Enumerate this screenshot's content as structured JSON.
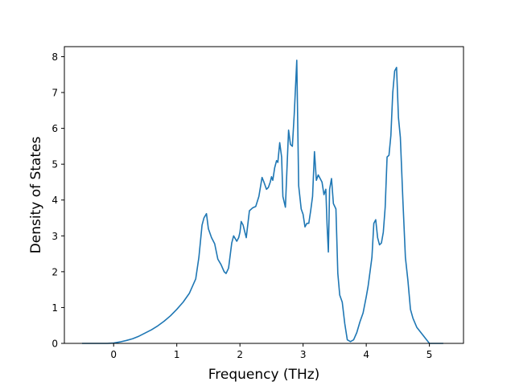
{
  "chart_data": {
    "type": "line",
    "title": "",
    "xlabel": "Frequency (THz)",
    "ylabel": "Density of States",
    "xlim": [
      -0.78,
      5.54
    ],
    "ylim": [
      0,
      8.28
    ],
    "xticks": [
      0,
      1,
      2,
      3,
      4,
      5
    ],
    "yticks": [
      0,
      1,
      2,
      3,
      4,
      5,
      6,
      7,
      8
    ],
    "grid": false,
    "legend": "none",
    "series": [
      {
        "color": "#1f77b4",
        "x": [
          -0.5,
          -0.3,
          -0.1,
          0.0,
          0.1,
          0.2,
          0.3,
          0.4,
          0.5,
          0.6,
          0.7,
          0.8,
          0.9,
          1.0,
          1.1,
          1.2,
          1.3,
          1.35,
          1.4,
          1.43,
          1.47,
          1.5,
          1.55,
          1.6,
          1.65,
          1.7,
          1.75,
          1.78,
          1.82,
          1.87,
          1.9,
          1.95,
          1.98,
          2.0,
          2.02,
          2.05,
          2.1,
          2.15,
          2.2,
          2.25,
          2.3,
          2.35,
          2.38,
          2.42,
          2.45,
          2.48,
          2.5,
          2.52,
          2.55,
          2.58,
          2.6,
          2.63,
          2.66,
          2.68,
          2.72,
          2.75,
          2.77,
          2.8,
          2.83,
          2.86,
          2.9,
          2.93,
          2.97,
          3.0,
          3.03,
          3.06,
          3.09,
          3.12,
          3.15,
          3.18,
          3.21,
          3.24,
          3.27,
          3.3,
          3.33,
          3.36,
          3.38,
          3.4,
          3.42,
          3.45,
          3.48,
          3.52,
          3.55,
          3.58,
          3.62,
          3.66,
          3.7,
          3.75,
          3.8,
          3.85,
          3.9,
          3.95,
          4.0,
          4.03,
          4.06,
          4.09,
          4.12,
          4.15,
          4.18,
          4.21,
          4.24,
          4.27,
          4.3,
          4.33,
          4.36,
          4.39,
          4.42,
          4.45,
          4.48,
          4.51,
          4.54,
          4.58,
          4.62,
          4.66,
          4.7,
          4.74,
          4.8,
          5.0,
          5.22
        ],
        "y": [
          0.0,
          0.0,
          0.0,
          0.01,
          0.04,
          0.08,
          0.13,
          0.2,
          0.29,
          0.38,
          0.49,
          0.62,
          0.77,
          0.95,
          1.15,
          1.4,
          1.8,
          2.4,
          3.3,
          3.5,
          3.62,
          3.2,
          2.95,
          2.78,
          2.35,
          2.2,
          2.0,
          1.95,
          2.1,
          2.8,
          3.0,
          2.85,
          2.95,
          3.1,
          3.4,
          3.3,
          2.95,
          3.7,
          3.78,
          3.82,
          4.1,
          4.63,
          4.5,
          4.3,
          4.35,
          4.5,
          4.65,
          4.55,
          4.9,
          5.1,
          5.05,
          5.6,
          5.2,
          4.1,
          3.8,
          5.1,
          5.95,
          5.55,
          5.5,
          6.4,
          7.9,
          4.4,
          3.75,
          3.6,
          3.25,
          3.35,
          3.35,
          3.7,
          4.1,
          5.35,
          4.55,
          4.7,
          4.6,
          4.5,
          4.15,
          4.3,
          3.3,
          2.55,
          4.3,
          4.6,
          3.9,
          3.75,
          1.95,
          1.35,
          1.15,
          0.55,
          0.1,
          0.05,
          0.1,
          0.3,
          0.6,
          0.85,
          1.3,
          1.6,
          2.0,
          2.4,
          3.35,
          3.45,
          2.95,
          2.75,
          2.8,
          3.1,
          3.8,
          5.2,
          5.25,
          5.8,
          7.0,
          7.6,
          7.7,
          6.3,
          5.75,
          4.0,
          2.4,
          1.75,
          0.95,
          0.7,
          0.45,
          0.0,
          0.0
        ]
      }
    ]
  }
}
